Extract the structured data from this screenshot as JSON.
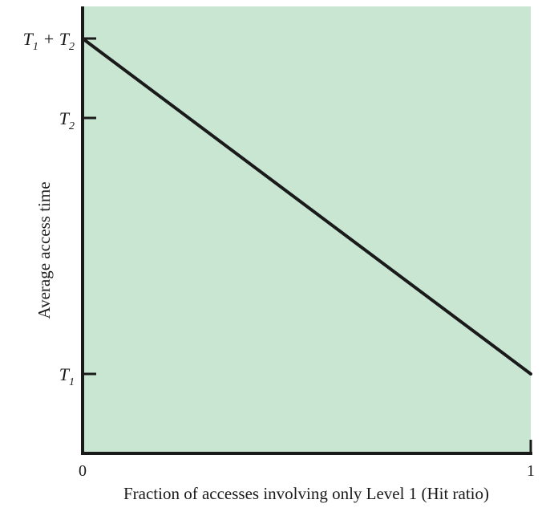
{
  "chart_data": {
    "type": "line",
    "xlabel": "Fraction of accesses involving only Level 1 (Hit ratio)",
    "ylabel": "Average access time",
    "x_ticks": [
      "0",
      "1"
    ],
    "xlim": [
      0,
      1
    ],
    "y_ticks": [
      {
        "symbol": "T",
        "sub": "1",
        "text": "",
        "sub2": ""
      },
      {
        "symbol": "T",
        "sub": "2",
        "text": "",
        "sub2": ""
      },
      {
        "symbol": "T",
        "sub": "1",
        "text": " + T",
        "sub2": "2"
      }
    ],
    "series": [
      {
        "x": [
          0,
          1
        ],
        "y_tick_index": [
          2,
          0
        ]
      }
    ],
    "grid": false,
    "colors": {
      "plot_background": "#c9e6d3",
      "line": "#1a1a1a",
      "axis": "#1a1a1a"
    }
  }
}
